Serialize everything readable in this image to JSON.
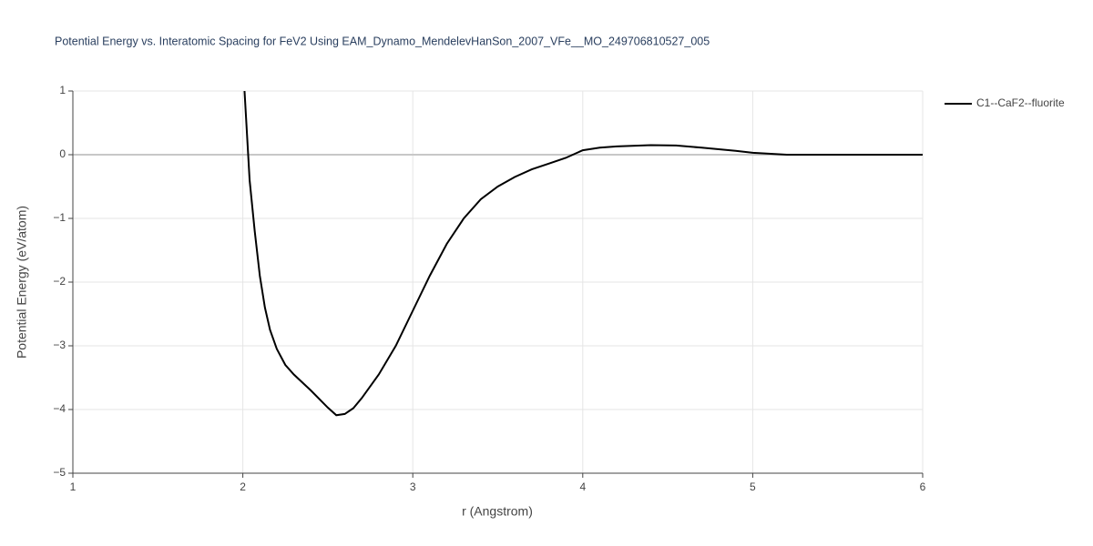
{
  "chart_data": {
    "type": "line",
    "title": "Potential Energy vs. Interatomic Spacing for FeV2 Using EAM_Dynamo_MendelevHanSon_2007_VFe__MO_249706810527_005",
    "x_label": "r (Angstrom)",
    "y_label": "Potential Energy (eV/atom)",
    "x": [
      2.01,
      2.04,
      2.07,
      2.1,
      2.13,
      2.16,
      2.2,
      2.25,
      2.3,
      2.4,
      2.5,
      2.55,
      2.6,
      2.65,
      2.7,
      2.8,
      2.9,
      3.0,
      3.1,
      3.2,
      3.3,
      3.4,
      3.5,
      3.6,
      3.7,
      3.8,
      3.9,
      4.0,
      4.1,
      4.2,
      4.4,
      4.55,
      4.7,
      4.9,
      5.0,
      5.2,
      5.5,
      6.0
    ],
    "series": [
      {
        "name": "C1--CaF2--fluorite",
        "color": "#000000",
        "values": [
          1.0,
          -0.4,
          -1.2,
          -1.9,
          -2.4,
          -2.75,
          -3.05,
          -3.3,
          -3.45,
          -3.7,
          -3.97,
          -4.09,
          -4.07,
          -3.98,
          -3.82,
          -3.45,
          -3.0,
          -2.45,
          -1.9,
          -1.4,
          -1.0,
          -0.7,
          -0.5,
          -0.35,
          -0.23,
          -0.14,
          -0.05,
          0.07,
          0.11,
          0.13,
          0.15,
          0.145,
          0.11,
          0.06,
          0.03,
          0.0,
          0.0,
          0.0
        ]
      }
    ],
    "xlim": [
      1,
      6
    ],
    "xticks": [
      1,
      2,
      3,
      4,
      5,
      6
    ],
    "ylim": [
      -5,
      1
    ],
    "yticks": [
      {
        "value": -5,
        "label": "−5"
      },
      {
        "value": -4,
        "label": "−4"
      },
      {
        "value": -3,
        "label": "−3"
      },
      {
        "value": -2,
        "label": "−2"
      },
      {
        "value": -1,
        "label": "−1"
      },
      0,
      1
    ],
    "grid": true,
    "legend": "top-right"
  }
}
